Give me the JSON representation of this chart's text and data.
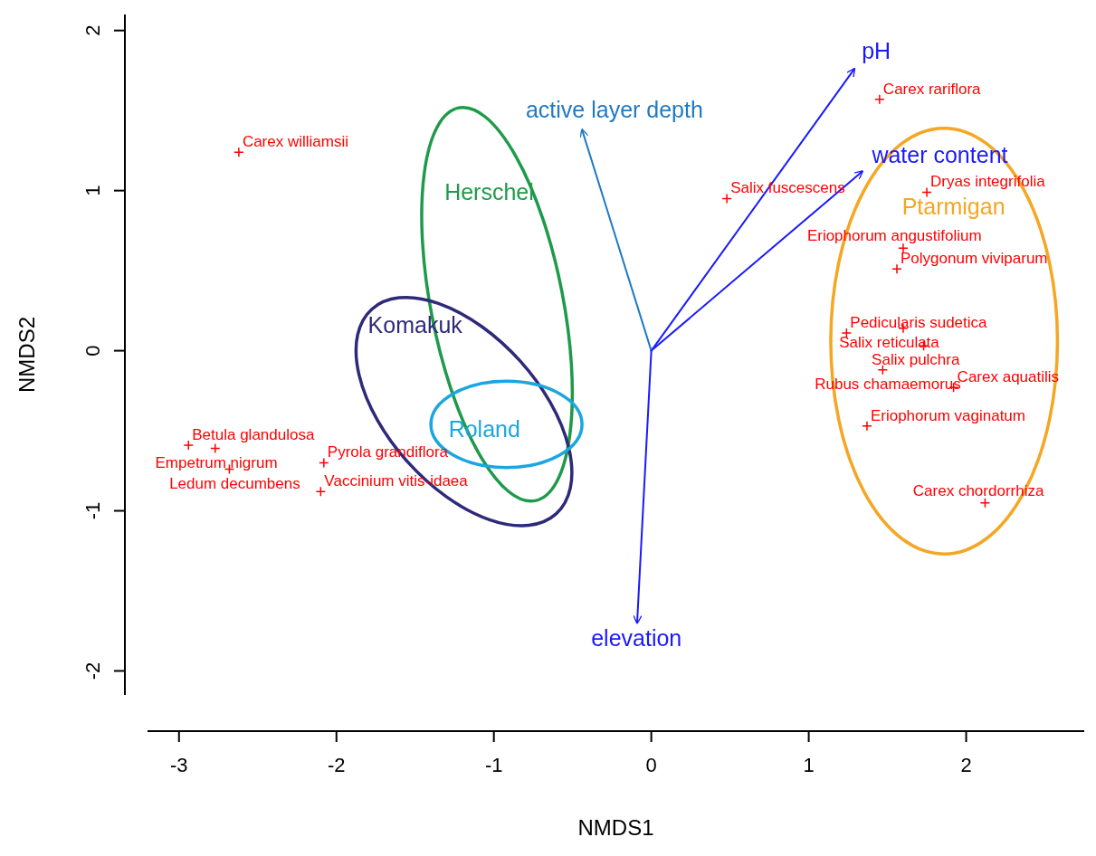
{
  "chart_data": {
    "type": "scatter",
    "xlabel": "NMDS1",
    "ylabel": "NMDS2",
    "xlim": [
      -3.2,
      2.75
    ],
    "ylim": [
      -2.15,
      2.1
    ],
    "xticks": [
      -3,
      -2,
      -1,
      0,
      1,
      2
    ],
    "yticks": [
      -2,
      -1,
      0,
      1,
      2
    ],
    "grid": false,
    "legend": false,
    "series": [
      {
        "marker": "cross",
        "color": "#ff0000",
        "x": [
          -2.62,
          0.48,
          1.45,
          1.75,
          1.6,
          1.56,
          1.24,
          1.6,
          1.73,
          1.47,
          1.92,
          1.37,
          2.12,
          -2.94,
          -2.77,
          -2.68,
          -2.08,
          -2.1
        ],
        "values": [
          1.24,
          0.95,
          1.57,
          0.99,
          0.64,
          0.51,
          0.11,
          0.14,
          0.03,
          -0.12,
          -0.23,
          -0.47,
          -0.95,
          -0.59,
          -0.61,
          -0.74,
          -0.7,
          -0.88
        ]
      },
      {
        "type": "line",
        "name": "pH",
        "color": "#1a1aff",
        "x": [
          0,
          1.29
        ],
        "values": [
          0,
          1.76
        ]
      },
      {
        "type": "line",
        "name": "water content",
        "color": "#1a1aff",
        "x": [
          0,
          1.34
        ],
        "values": [
          0,
          1.12
        ]
      },
      {
        "type": "line",
        "name": "active layer depth",
        "color": "#1f7ac4",
        "x": [
          0,
          -0.44
        ],
        "values": [
          0,
          1.38
        ]
      },
      {
        "type": "line",
        "name": "elevation",
        "color": "#1a1aff",
        "x": [
          0,
          -0.09
        ],
        "values": [
          0,
          -1.7
        ]
      }
    ],
    "annotations": [
      "Herschel",
      "Komakuk",
      "Roland",
      "Ptarmigan",
      {
        "text": "Carex williamsii",
        "x": -2.62,
        "y": 1.24
      },
      {
        "text": "Salix fuscescens",
        "x": 0.48,
        "y": 0.95
      },
      {
        "text": "Carex rariflora",
        "x": 1.45,
        "y": 1.57
      },
      {
        "text": "Dryas integrifolia",
        "x": 1.75,
        "y": 0.99
      },
      {
        "text": "Eriophorum angustifolium",
        "x": 1.6,
        "y": 0.64
      },
      {
        "text": "Polygonum viviparum",
        "x": 1.56,
        "y": 0.51
      },
      {
        "text": "Pedicularis sudetica",
        "x": 1.24,
        "y": 0.11
      },
      {
        "text": "Salix reticulata",
        "x": 1.6,
        "y": 0.14
      },
      {
        "text": "Salix pulchra",
        "x": 1.73,
        "y": 0.03
      },
      {
        "text": "Rubus chamaemorus",
        "x": 1.47,
        "y": -0.12
      },
      {
        "text": "Carex aquatilis",
        "x": 1.92,
        "y": -0.23
      },
      {
        "text": "Eriophorum vaginatum",
        "x": 1.37,
        "y": -0.47
      },
      {
        "text": "Carex chordorrhiza",
        "x": 2.12,
        "y": -0.95
      },
      {
        "text": "Betula glandulosa",
        "x": -2.94,
        "y": -0.59
      },
      {
        "text": "Empetrum nigrum",
        "x": -2.77,
        "y": -0.61
      },
      {
        "text": "Ledum decumbens",
        "x": -2.68,
        "y": -0.74
      },
      {
        "text": "Pyrola grandiflora",
        "x": -2.08,
        "y": -0.7
      },
      {
        "text": "Vaccinium vitis-idaea",
        "x": -2.1,
        "y": -0.88
      }
    ]
  }
}
